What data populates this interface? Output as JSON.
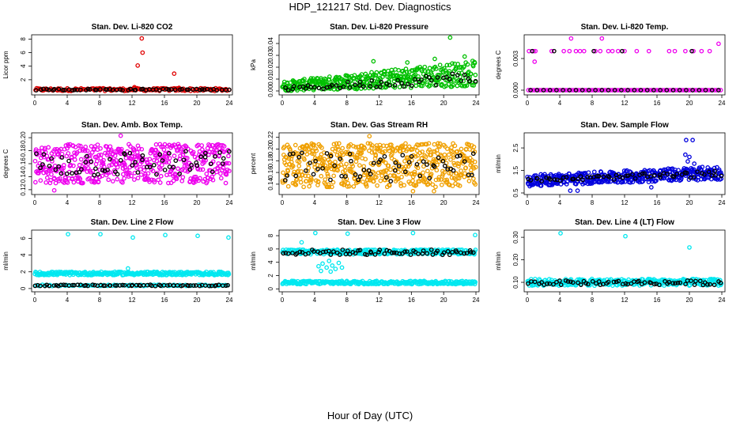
{
  "title": "HDP_121217  Std. Dev. Diagnostics",
  "xlabel": "Hour of Day (UTC)",
  "colors": {
    "reference": "#000000"
  },
  "chart_data": [
    {
      "type": "scatter",
      "title": "Stan. Dev. Li-820 CO2",
      "ylabel": "Licor ppm",
      "color": "#e00000",
      "xlim": [
        0,
        24
      ],
      "ylim": [
        0,
        8.4
      ],
      "xticks": [
        "0",
        "4",
        "8",
        "12",
        "16",
        "20",
        "24"
      ],
      "yticks": [
        {
          "v": 2,
          "label": "2"
        },
        {
          "v": 4,
          "label": "4"
        },
        {
          "v": 6,
          "label": "6"
        },
        {
          "v": 8,
          "label": "8"
        }
      ],
      "points": [
        [
          13.2,
          8.1
        ],
        [
          13.3,
          6.0
        ],
        [
          12.7,
          4.1
        ],
        [
          17.2,
          2.9
        ],
        [
          12.3,
          0.9
        ],
        [
          17.8,
          0.8
        ],
        [
          8.0,
          0.75
        ],
        [
          15.0,
          0.7
        ]
      ],
      "band": {
        "lo": 0.35,
        "hi": 0.75,
        "n": 170
      },
      "ref": {
        "lo": 0.45,
        "hi": 0.65,
        "n": 60
      }
    },
    {
      "type": "scatter",
      "title": "Stan. Dev. Li-820 Pressure",
      "ylabel": "kPa",
      "color": "#00c000",
      "xlim": [
        0,
        24
      ],
      "ylim": [
        -0.002,
        0.046
      ],
      "xticks": [
        "0",
        "4",
        "8",
        "12",
        "16",
        "20",
        "24"
      ],
      "yticks": [
        {
          "v": 0,
          "label": "0.00"
        },
        {
          "v": 0.01,
          "label": "0.01"
        },
        {
          "v": 0.02,
          "label": "0.02"
        },
        {
          "v": 0.03,
          "label": "0.03"
        },
        {
          "v": 0.04,
          "label": "0.04"
        }
      ],
      "points": [
        [
          20.8,
          0.045
        ],
        [
          11.3,
          0.025
        ],
        [
          15.5,
          0.024
        ],
        [
          22.6,
          0.029
        ],
        [
          18.9,
          0.027
        ]
      ],
      "trend": {
        "lo0": 0.0,
        "hi0": 0.008,
        "lo1": 0.004,
        "hi1": 0.026,
        "n": 420
      },
      "ref": {
        "lo0": 0.0,
        "hi0": 0.003,
        "lo1": 0.006,
        "hi1": 0.017,
        "n": 55
      }
    },
    {
      "type": "scatter",
      "title": "Stan. Dev. Li-820 Temp.",
      "ylabel": "degrees C",
      "color": "#ee00ee",
      "xlim": [
        0,
        24
      ],
      "ylim": [
        -0.0003,
        0.0051
      ],
      "xticks": [
        "0",
        "4",
        "8",
        "12",
        "16",
        "20",
        "24"
      ],
      "yticks": [
        {
          "v": 0,
          "label": "0.000"
        },
        {
          "v": 0.003,
          "label": "0.003"
        }
      ],
      "points": [
        [
          5.4,
          0.0049
        ],
        [
          9.2,
          0.0049
        ],
        [
          23.6,
          0.0044
        ],
        [
          0.9,
          0.0027
        ],
        [
          0.2,
          0.0037
        ],
        [
          0.8,
          0.0037
        ],
        [
          1.0,
          0.0037
        ],
        [
          3.0,
          0.0037
        ],
        [
          4.5,
          0.0037
        ],
        [
          5.2,
          0.0037
        ],
        [
          6.0,
          0.0037
        ],
        [
          6.5,
          0.0037
        ],
        [
          7.0,
          0.0037
        ],
        [
          8.4,
          0.0037
        ],
        [
          9.0,
          0.0037
        ],
        [
          10.0,
          0.0037
        ],
        [
          10.5,
          0.0037
        ],
        [
          11.2,
          0.0037
        ],
        [
          12.0,
          0.0037
        ],
        [
          13.5,
          0.0037
        ],
        [
          15.0,
          0.0037
        ],
        [
          17.5,
          0.0037
        ],
        [
          18.2,
          0.0037
        ],
        [
          19.5,
          0.0037
        ],
        [
          20.5,
          0.0037
        ],
        [
          21.5,
          0.0037
        ],
        [
          22.5,
          0.0037
        ]
      ],
      "refpoints": [
        [
          0.6,
          0.0037
        ],
        [
          3.3,
          0.0037
        ],
        [
          8.2,
          0.0037
        ],
        [
          11.7,
          0.0037
        ],
        [
          20.3,
          0.0037
        ]
      ],
      "baseline": {
        "v": 0.0,
        "n": 90
      }
    },
    {
      "type": "scatter",
      "title": "Stan. Dev. Amb. Box Temp.",
      "ylabel": "degrees C",
      "color": "#ee00ee",
      "xlim": [
        0,
        24
      ],
      "ylim": [
        0.115,
        0.205
      ],
      "xticks": [
        "0",
        "4",
        "8",
        "12",
        "16",
        "20",
        "24"
      ],
      "yticks": [
        {
          "v": 0.12,
          "label": "0.12"
        },
        {
          "v": 0.14,
          "label": "0.14"
        },
        {
          "v": 0.16,
          "label": "0.16"
        },
        {
          "v": 0.18,
          "label": "0.18"
        },
        {
          "v": 0.2,
          "label": "0.20"
        }
      ],
      "points": [
        [
          10.6,
          0.203
        ],
        [
          2.4,
          0.119
        ]
      ],
      "band": {
        "lo": 0.13,
        "hi": 0.19,
        "n": 520
      },
      "ref": {
        "lo": 0.14,
        "hi": 0.18,
        "n": 65
      }
    },
    {
      "type": "scatter",
      "title": "Stan. Dev. Gas Stream RH",
      "ylabel": "percent",
      "color": "#f0a000",
      "xlim": [
        0,
        24
      ],
      "ylim": [
        0.125,
        0.225
      ],
      "xticks": [
        "0",
        "4",
        "8",
        "12",
        "16",
        "20",
        "24"
      ],
      "yticks": [
        {
          "v": 0.14,
          "label": "0.14"
        },
        {
          "v": 0.16,
          "label": "0.16"
        },
        {
          "v": 0.18,
          "label": "0.18"
        },
        {
          "v": 0.2,
          "label": "0.20"
        },
        {
          "v": 0.22,
          "label": "0.22"
        }
      ],
      "points": [
        [
          10.8,
          0.222
        ],
        [
          16.2,
          0.128
        ],
        [
          18.8,
          0.128
        ],
        [
          3.0,
          0.205
        ],
        [
          17.4,
          0.208
        ]
      ],
      "band": {
        "lo": 0.135,
        "hi": 0.21,
        "n": 560
      },
      "ref": {
        "lo": 0.145,
        "hi": 0.195,
        "n": 60
      }
    },
    {
      "type": "scatter",
      "title": "Stan. Dev. Sample Flow",
      "ylabel": "ml/min",
      "color": "#0000dd",
      "xlim": [
        0,
        24
      ],
      "ylim": [
        0.5,
        3.1
      ],
      "xticks": [
        "0",
        "4",
        "8",
        "12",
        "16",
        "20",
        "24"
      ],
      "yticks": [
        {
          "v": 0.5,
          "label": "0.5"
        },
        {
          "v": 1.5,
          "label": "1.5"
        },
        {
          "v": 2.5,
          "label": "2.5"
        }
      ],
      "points": [
        [
          19.6,
          2.85
        ],
        [
          20.4,
          2.85
        ],
        [
          19.5,
          2.2
        ],
        [
          20.0,
          2.1
        ],
        [
          19.8,
          1.9
        ],
        [
          20.6,
          1.8
        ],
        [
          0.3,
          0.8
        ],
        [
          5.3,
          0.6
        ],
        [
          6.2,
          0.6
        ],
        [
          15.3,
          0.75
        ]
      ],
      "trend": {
        "lo0": 0.8,
        "hi0": 1.3,
        "lo1": 1.1,
        "hi1": 1.7,
        "n": 420
      },
      "ref": {
        "lo0": 1.0,
        "hi0": 1.15,
        "lo1": 1.2,
        "hi1": 1.5,
        "n": 60
      }
    },
    {
      "type": "scatter",
      "title": "Stan. Dev. Line 2 Flow",
      "ylabel": "ml/min",
      "color": "#00e8f0",
      "xlim": [
        0,
        24
      ],
      "ylim": [
        -0.2,
        6.8
      ],
      "xticks": [
        "0",
        "4",
        "8",
        "12",
        "16",
        "20",
        "24"
      ],
      "yticks": [
        {
          "v": 0,
          "label": "0"
        },
        {
          "v": 2,
          "label": "2"
        },
        {
          "v": 4,
          "label": "4"
        },
        {
          "v": 6,
          "label": "6"
        }
      ],
      "points": [
        [
          4.1,
          6.5
        ],
        [
          8.1,
          6.5
        ],
        [
          12.1,
          6.1
        ],
        [
          16.1,
          6.4
        ],
        [
          20.1,
          6.3
        ],
        [
          23.9,
          6.1
        ],
        [
          11.5,
          2.4
        ]
      ],
      "band": {
        "lo": 1.6,
        "hi": 2.0,
        "n": 300
      },
      "band2": {
        "lo": 0.3,
        "hi": 0.45,
        "n": 90
      },
      "ref": {
        "lo": 0.3,
        "hi": 0.45,
        "n": 70
      }
    },
    {
      "type": "scatter",
      "title": "Stan. Dev. Line 3 Flow",
      "ylabel": "ml/min",
      "color": "#00e8f0",
      "xlim": [
        0,
        24
      ],
      "ylim": [
        -0.2,
        8.6
      ],
      "xticks": [
        "0",
        "4",
        "8",
        "12",
        "16",
        "20",
        "24"
      ],
      "yticks": [
        {
          "v": 0,
          "label": "0"
        },
        {
          "v": 2,
          "label": "2"
        },
        {
          "v": 4,
          "label": "4"
        },
        {
          "v": 6,
          "label": "6"
        },
        {
          "v": 8,
          "label": "8"
        }
      ],
      "points": [
        [
          4.1,
          8.4
        ],
        [
          8.1,
          8.3
        ],
        [
          23.9,
          8.1
        ],
        [
          16.2,
          8.4
        ],
        [
          2.4,
          7.0
        ],
        [
          4.5,
          3.4
        ],
        [
          5.0,
          3.8
        ],
        [
          5.5,
          3.2
        ],
        [
          5.8,
          4.2
        ],
        [
          6.2,
          3.5
        ],
        [
          6.6,
          3.0
        ],
        [
          7.0,
          3.9
        ],
        [
          7.4,
          3.2
        ],
        [
          4.8,
          2.7
        ],
        [
          6.0,
          2.6
        ]
      ],
      "band": {
        "lo": 5.2,
        "hi": 5.9,
        "n": 300
      },
      "band2": {
        "lo": 0.7,
        "hi": 1.2,
        "n": 300
      },
      "ref": {
        "lo": 5.1,
        "hi": 5.9,
        "n": 70
      }
    },
    {
      "type": "scatter",
      "title": "Stan. Dev. Line 4 (LT) Flow",
      "ylabel": "ml/min",
      "color": "#00e8f0",
      "xlim": [
        0,
        24
      ],
      "ylim": [
        0.065,
        0.325
      ],
      "xticks": [
        "0",
        "4",
        "8",
        "12",
        "16",
        "20",
        "24"
      ],
      "yticks": [
        {
          "v": 0.1,
          "label": "0.10"
        },
        {
          "v": 0.2,
          "label": "0.20"
        },
        {
          "v": 0.3,
          "label": "0.30"
        }
      ],
      "points": [
        [
          4.1,
          0.318
        ],
        [
          12.1,
          0.305
        ],
        [
          20.0,
          0.255
        ]
      ],
      "band": {
        "lo": 0.085,
        "hi": 0.115,
        "n": 320
      },
      "ref": {
        "lo": 0.088,
        "hi": 0.108,
        "n": 65
      }
    }
  ]
}
